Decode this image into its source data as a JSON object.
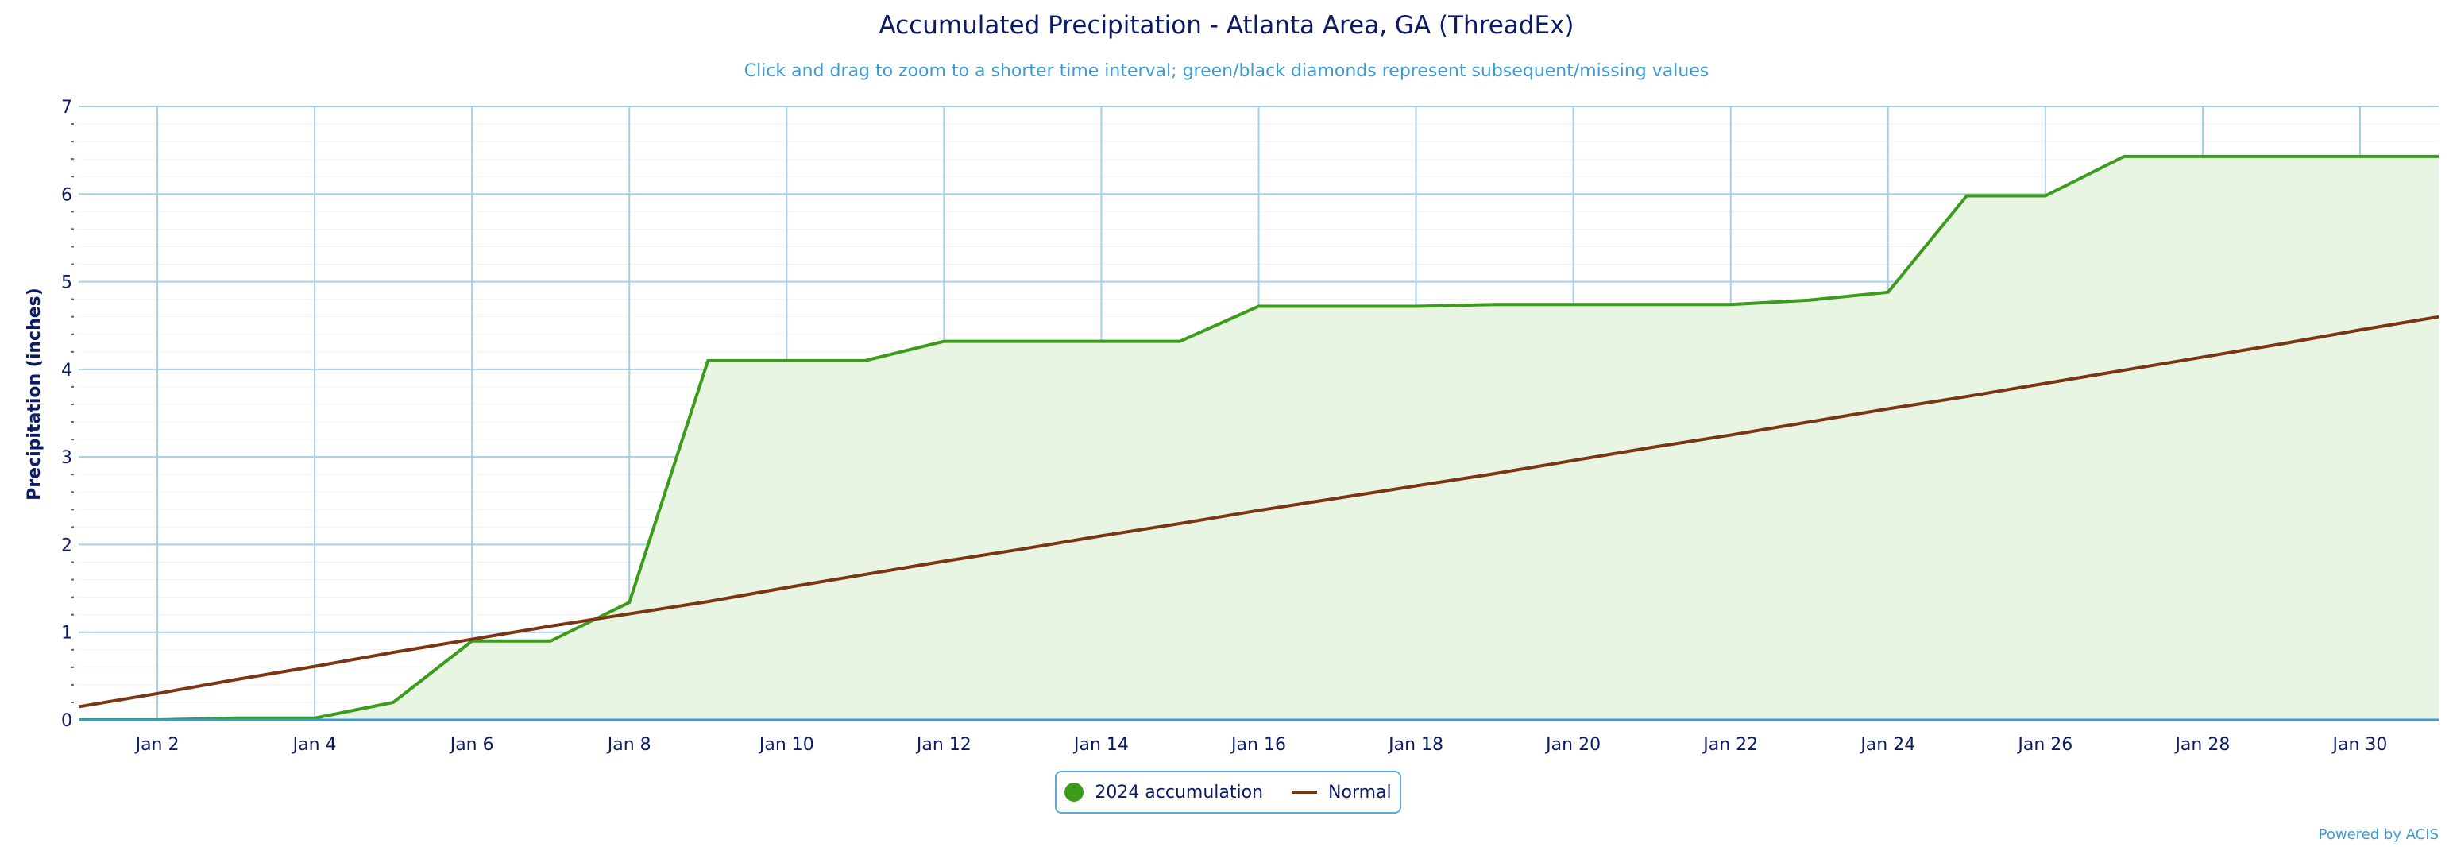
{
  "chart_data": {
    "type": "area",
    "title": "Accumulated Precipitation - Atlanta Area, GA (ThreadEx)",
    "subtitle": "Click and drag to zoom to a shorter time interval; green/black diamonds represent subsequent/missing values",
    "ylabel": "Precipitation (inches)",
    "xlabel": "",
    "ylim": [
      0,
      7
    ],
    "xlim": [
      1,
      31
    ],
    "yticks": [
      0,
      1,
      2,
      3,
      4,
      5,
      6,
      7
    ],
    "xticks": [
      2,
      4,
      6,
      8,
      10,
      12,
      14,
      16,
      18,
      20,
      22,
      24,
      26,
      28,
      30
    ],
    "xtick_labels": [
      "Jan 2",
      "Jan 4",
      "Jan 6",
      "Jan 8",
      "Jan 10",
      "Jan 12",
      "Jan 14",
      "Jan 16",
      "Jan 18",
      "Jan 20",
      "Jan 22",
      "Jan 24",
      "Jan 26",
      "Jan 28",
      "Jan 30"
    ],
    "grid": true,
    "legend_position": "bottom-center",
    "series": [
      {
        "name": "2024 accumulation",
        "color": "#3d9b1c",
        "fill": "#e9f5e3",
        "x": [
          1,
          2,
          3,
          4,
          5,
          6,
          7,
          8,
          9,
          10,
          11,
          12,
          13,
          14,
          15,
          16,
          17,
          18,
          19,
          20,
          21,
          22,
          23,
          24,
          25,
          26,
          27,
          28,
          29,
          30,
          31
        ],
        "values": [
          0.0,
          0.0,
          0.02,
          0.02,
          0.2,
          0.9,
          0.9,
          1.34,
          4.1,
          4.1,
          4.1,
          4.32,
          4.32,
          4.32,
          4.32,
          4.72,
          4.72,
          4.72,
          4.74,
          4.74,
          4.74,
          4.74,
          4.79,
          4.88,
          5.98,
          5.98,
          6.43,
          6.43,
          6.43,
          6.43,
          6.43
        ]
      },
      {
        "name": "Normal",
        "color": "#7a3512",
        "x": [
          1,
          2,
          3,
          4,
          5,
          6,
          7,
          8,
          9,
          10,
          11,
          12,
          13,
          14,
          15,
          16,
          17,
          18,
          19,
          20,
          21,
          22,
          23,
          24,
          25,
          26,
          27,
          28,
          29,
          30,
          31
        ],
        "values": [
          0.15,
          0.3,
          0.46,
          0.61,
          0.77,
          0.92,
          1.07,
          1.21,
          1.35,
          1.51,
          1.66,
          1.81,
          1.95,
          2.1,
          2.24,
          2.39,
          2.53,
          2.67,
          2.81,
          2.96,
          3.11,
          3.25,
          3.4,
          3.55,
          3.69,
          3.84,
          3.99,
          4.14,
          4.29,
          4.45,
          4.6
        ]
      }
    ]
  },
  "credit": "Powered by ACIS"
}
